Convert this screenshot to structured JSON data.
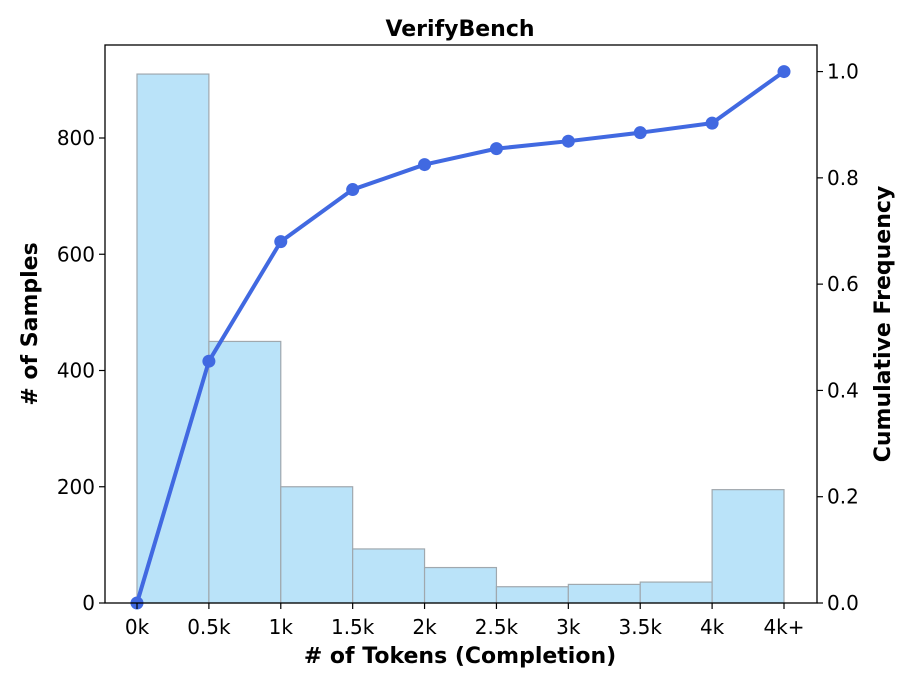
{
  "chart_data": {
    "type": "bar",
    "title": "VerifyBench",
    "xlabel": "# of Tokens (Completion)",
    "ylabel": "# of Samples",
    "y2label": "Cumulative Frequency",
    "x_ticks": [
      "0k",
      "0.5k",
      "1k",
      "1.5k",
      "2k",
      "2.5k",
      "3k",
      "3.5k",
      "4k",
      "4k+"
    ],
    "bins": [
      {
        "from": 0,
        "to": 0.5,
        "count": 910
      },
      {
        "from": 0.5,
        "to": 1,
        "count": 450
      },
      {
        "from": 1,
        "to": 1.5,
        "count": 200
      },
      {
        "from": 1.5,
        "to": 2,
        "count": 93
      },
      {
        "from": 2,
        "to": 2.5,
        "count": 61
      },
      {
        "from": 2.5,
        "to": 3,
        "count": 28
      },
      {
        "from": 3,
        "to": 3.5,
        "count": 32
      },
      {
        "from": 3.5,
        "to": 4,
        "count": 36
      },
      {
        "from": 4,
        "to": 4.5,
        "count": 195
      }
    ],
    "cumulative": {
      "x": [
        0,
        0.5,
        1,
        1.5,
        2,
        2.5,
        3,
        3.5,
        4,
        4.5
      ],
      "values": [
        0.0,
        0.455,
        0.68,
        0.778,
        0.825,
        0.855,
        0.869,
        0.885,
        0.903,
        1.0
      ]
    },
    "ylim": [
      0,
      960
    ],
    "y_ticks": [
      0,
      200,
      400,
      600,
      800
    ],
    "y2lim": [
      0,
      1.05
    ],
    "y2_ticks": [
      "0.0",
      "0.2",
      "0.4",
      "0.6",
      "0.8",
      "1.0"
    ],
    "bar_color": "#bae3f9",
    "bar_edge_color": "#a0a8ae",
    "line_color": "#4169e1",
    "grid": false
  }
}
